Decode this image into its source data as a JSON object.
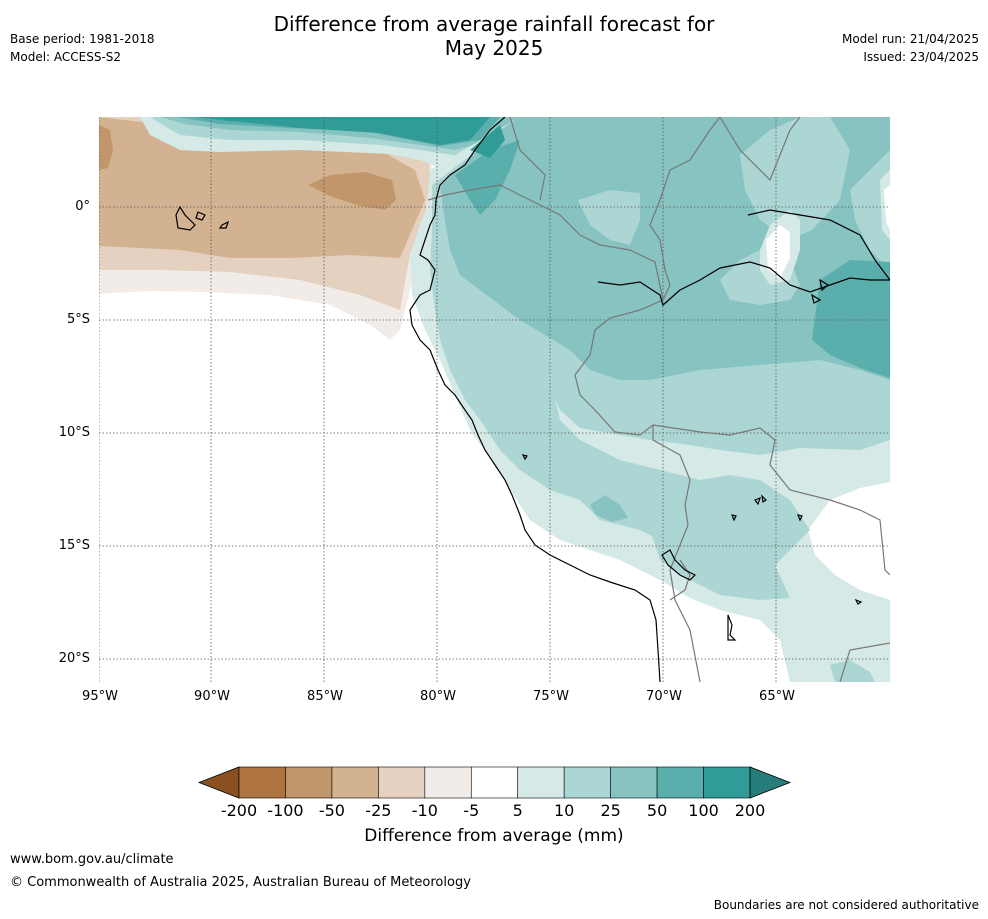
{
  "title_line1": "Difference from average rainfall forecast for",
  "title_line2": "May 2025",
  "meta_left": [
    "Base period: 1981-2018",
    "Model: ACCESS-S2"
  ],
  "meta_right": [
    "Model run: 21/04/2025",
    "Issued: 23/04/2025"
  ],
  "map": {
    "lat_labels": [
      "0°",
      "5°S",
      "10°S",
      "15°S",
      "20°S"
    ],
    "lon_labels": [
      "95°W",
      "90°W",
      "85°W",
      "80°W",
      "75°W",
      "70°W",
      "65°W"
    ],
    "lat_values": [
      0,
      -5,
      -10,
      -15,
      -20
    ],
    "lon_values": [
      -95,
      -90,
      -85,
      -80,
      -75,
      -70,
      -65
    ],
    "extent": {
      "lon": [
        -95,
        -60
      ],
      "lat": [
        -21,
        4
      ]
    },
    "gridlines": true
  },
  "colorbar": {
    "tick_labels": [
      "-200",
      "-100",
      "-50",
      "-25",
      "-10",
      "-5",
      "5",
      "10",
      "25",
      "50",
      "100",
      "200"
    ],
    "colors": [
      "#8a5120",
      "#ad743f",
      "#c1966b",
      "#d3b291",
      "#e4d1c0",
      "#f1ece8",
      "#ffffff",
      "#d5e9e7",
      "#acd6d4",
      "#86c3c1",
      "#5aafac",
      "#319b97",
      "#277d79"
    ],
    "title": "Difference from average (mm)"
  },
  "footer": {
    "url": "www.bom.gov.au/climate",
    "copyright": "© Commonwealth of Australia 2025, Australian Bureau of Meteorology",
    "disclaimer": "Boundaries are not considered authoritative"
  }
}
